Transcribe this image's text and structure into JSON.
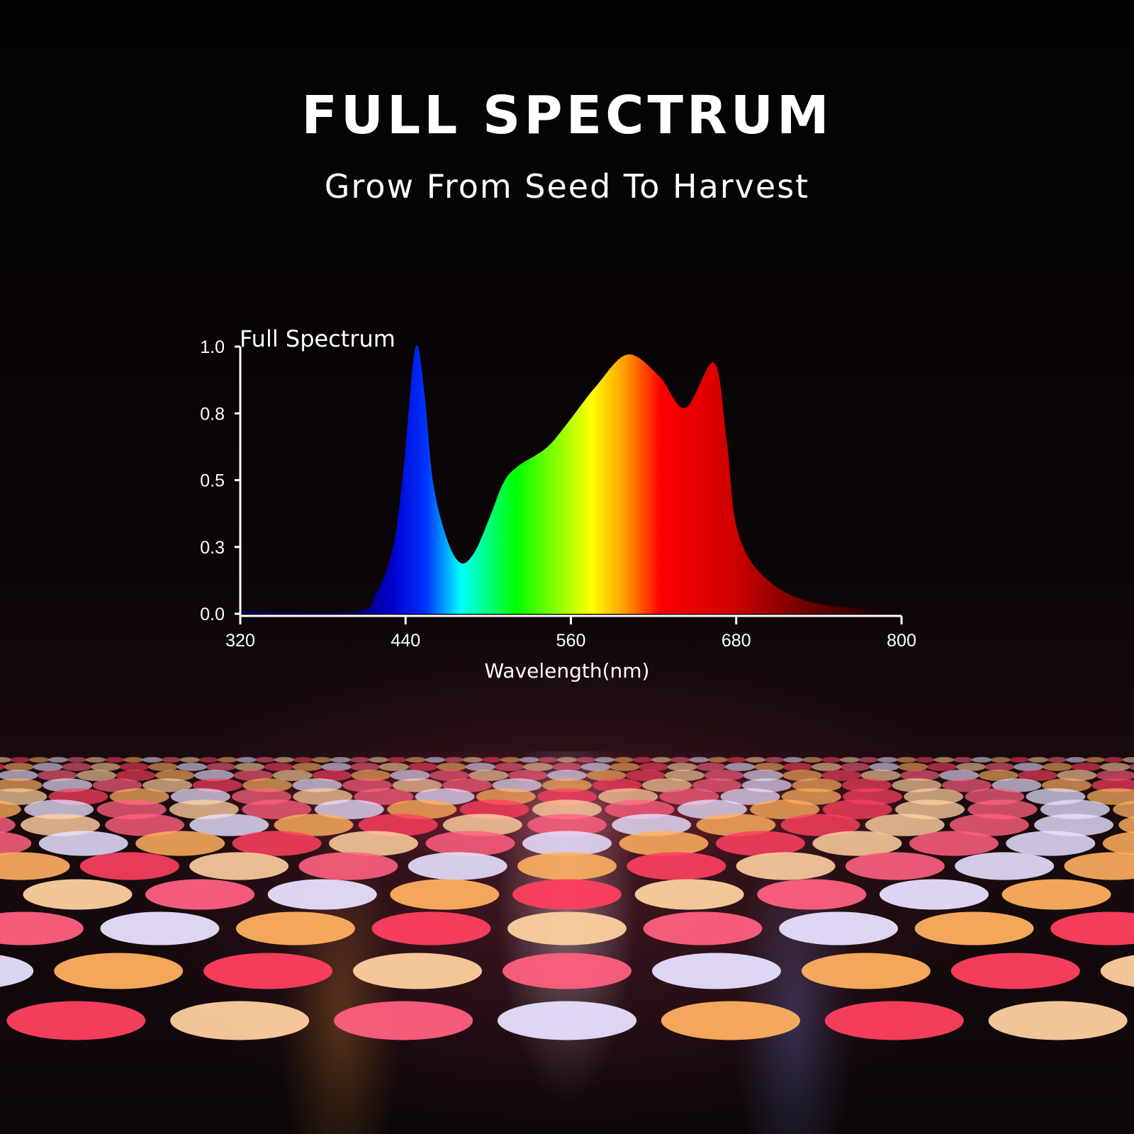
{
  "header": {
    "title": "FULL SPECTRUM",
    "subtitle": "Grow From Seed To Harvest"
  },
  "chart_data": {
    "type": "area",
    "title": "Full Spectrum",
    "xlabel": "Wavelength(nm)",
    "ylabel": "",
    "xlim": [
      320,
      800
    ],
    "ylim": [
      0,
      1.0
    ],
    "x_ticks": [
      320,
      440,
      560,
      680,
      800
    ],
    "x_tick_labels": [
      "320",
      "440",
      "560",
      "680",
      "800"
    ],
    "y_ticks": [
      0,
      0.25,
      0.5,
      0.75,
      1.0
    ],
    "y_tick_labels": [
      "0.0",
      "0.3",
      "0.5",
      "0.8",
      "1.0"
    ],
    "grid": false,
    "fill": "wavelength-colored gradient",
    "x": [
      320,
      403,
      418,
      431,
      439,
      445,
      449,
      454,
      460,
      470,
      480,
      490,
      501,
      511,
      521,
      542,
      557,
      578,
      601,
      624,
      643,
      664,
      673,
      681,
      701,
      737,
      800
    ],
    "y": [
      0.01,
      0.01,
      0.07,
      0.25,
      0.57,
      0.92,
      1.0,
      0.81,
      0.49,
      0.28,
      0.19,
      0.23,
      0.36,
      0.49,
      0.55,
      0.62,
      0.71,
      0.85,
      0.97,
      0.89,
      0.77,
      0.94,
      0.65,
      0.31,
      0.135,
      0.04,
      0.01
    ]
  },
  "colors": {
    "background": "#050304",
    "text": "#ffffff",
    "spectrum_stops": [
      {
        "nm": 400,
        "color": "#000060"
      },
      {
        "nm": 430,
        "color": "#0000cc"
      },
      {
        "nm": 455,
        "color": "#0033ff"
      },
      {
        "nm": 480,
        "color": "#00ffff"
      },
      {
        "nm": 520,
        "color": "#00ff00"
      },
      {
        "nm": 575,
        "color": "#ffff00"
      },
      {
        "nm": 600,
        "color": "#ff9900"
      },
      {
        "nm": 625,
        "color": "#ff0000"
      },
      {
        "nm": 680,
        "color": "#cc0000"
      },
      {
        "nm": 730,
        "color": "#700000"
      },
      {
        "nm": 790,
        "color": "#100000"
      }
    ]
  }
}
